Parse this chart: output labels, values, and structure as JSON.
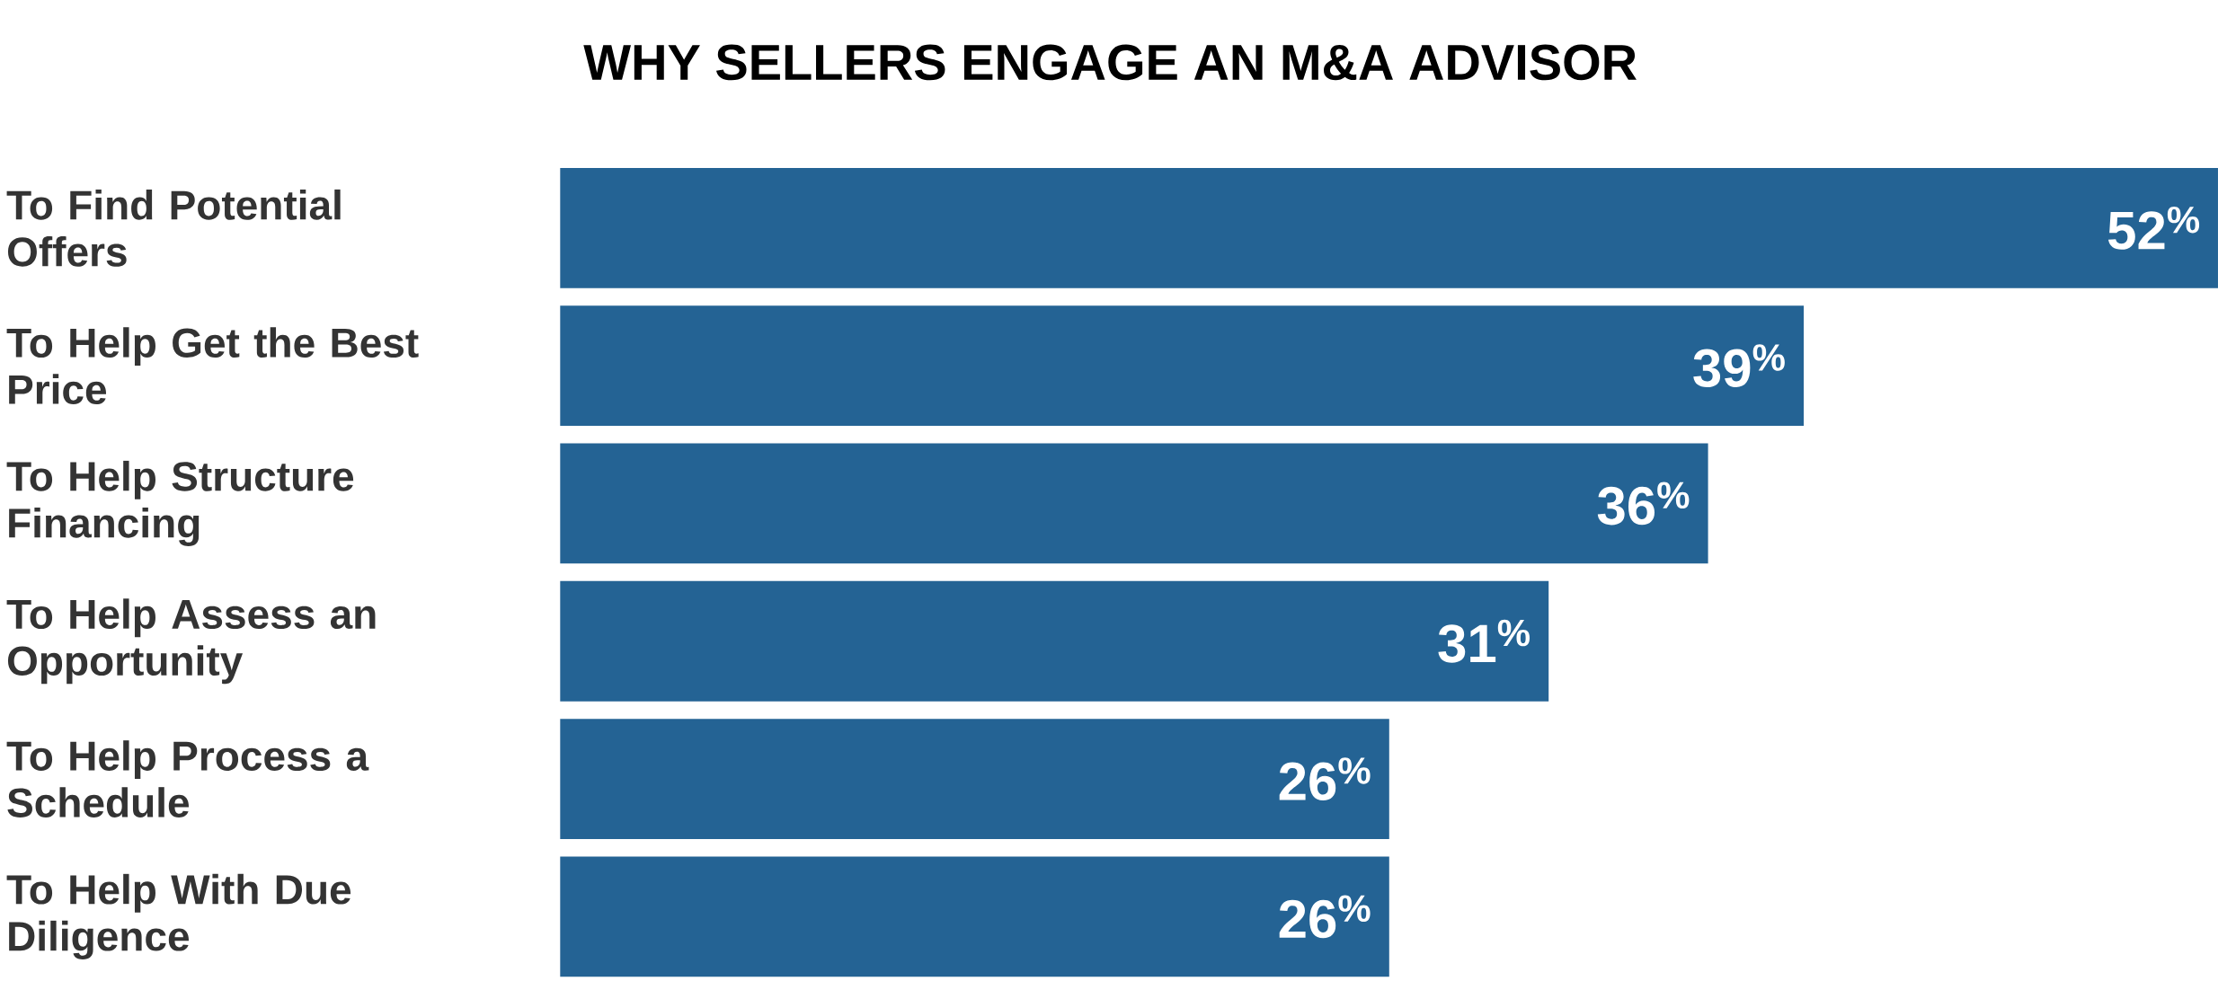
{
  "chart_data": {
    "type": "bar",
    "orientation": "horizontal",
    "title": "WHY SELLERS ENGAGE AN M&A ADVISOR",
    "categories": [
      "To Find Potential Offers",
      "To Help Get the Best Price",
      "To Help Structure Financing",
      "To Help Assess an Opportunity",
      "To Help Process a Schedule",
      "To Help With Due Diligence"
    ],
    "values": [
      52,
      39,
      36,
      31,
      26,
      26
    ],
    "value_labels": [
      "52$^{%}$",
      "39$^{%}$",
      "36$^{%}$",
      "31$^{%}$",
      "26$^{%}$",
      "26$^{%}$"
    ],
    "color": "#246394"
  }
}
